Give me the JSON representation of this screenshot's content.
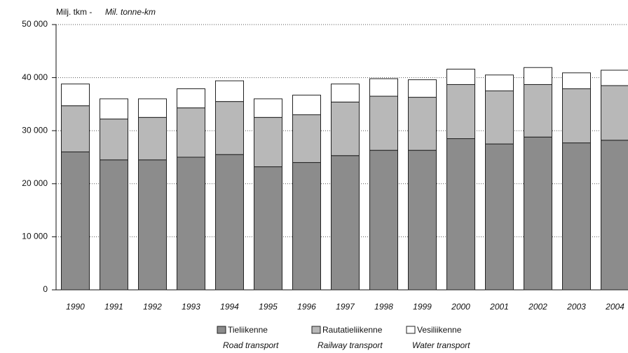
{
  "chart_data": {
    "type": "stacked_bar",
    "unit_label": "Milj. tkm -",
    "unit_label_en": "Mil. tonne-km",
    "categories": [
      "1990",
      "1991",
      "1992",
      "1993",
      "1994",
      "1995",
      "1996",
      "1997",
      "1998",
      "1999",
      "2000",
      "2001",
      "2002",
      "2003",
      "2004"
    ],
    "series": [
      {
        "name": "Tieliikenne",
        "name_en": "Road transport",
        "color": "#8c8c8c",
        "values": [
          26000,
          24500,
          24500,
          25000,
          25500,
          23200,
          24000,
          25300,
          26300,
          26300,
          28500,
          27500,
          28800,
          27700,
          28200
        ]
      },
      {
        "name": "Rautatieliikenne",
        "name_en": "Railway transport",
        "color": "#b8b8b8",
        "values": [
          8700,
          7700,
          8000,
          9300,
          10000,
          9300,
          9000,
          10100,
          10200,
          10000,
          10200,
          10000,
          9900,
          10200,
          10300
        ]
      },
      {
        "name": "Vesiliikenne",
        "name_en": "Water transport",
        "color": "#ffffff",
        "values": [
          4100,
          3800,
          3500,
          3600,
          3900,
          3500,
          3700,
          3400,
          3300,
          3300,
          2900,
          3000,
          3200,
          3000,
          2900
        ]
      }
    ],
    "ylim": [
      0,
      50000
    ],
    "yticks": [
      {
        "value": 0,
        "label": "0"
      },
      {
        "value": 10000,
        "label": "10 000"
      },
      {
        "value": 20000,
        "label": "20 000"
      },
      {
        "value": 30000,
        "label": "30 000"
      },
      {
        "value": 40000,
        "label": "40 000"
      },
      {
        "value": 50000,
        "label": "50 000"
      }
    ],
    "grid": true
  }
}
